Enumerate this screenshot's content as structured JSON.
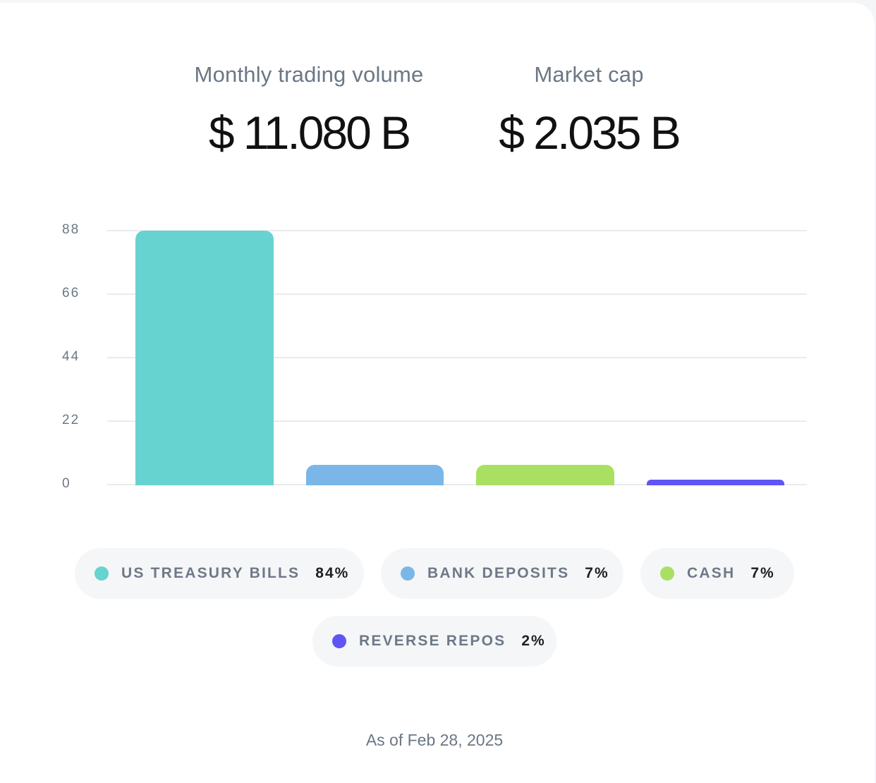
{
  "stats": {
    "monthly_volume": {
      "label": "Monthly trading volume",
      "value": "$ 11.080 B"
    },
    "market_cap": {
      "label": "Market cap",
      "value": "$ 2.035 B"
    }
  },
  "chart_data": {
    "type": "bar",
    "title": "",
    "xlabel": "",
    "ylabel": "",
    "categories": [
      "US TREASURY BILLS",
      "BANK DEPOSITS",
      "CASH",
      "REVERSE REPOS"
    ],
    "values": [
      84,
      7,
      7,
      2
    ],
    "colors": [
      "#66d3d1",
      "#7ab7e8",
      "#a9e062",
      "#5f55f5"
    ],
    "ylim": [
      0,
      88
    ],
    "yticks": [
      "88",
      "66",
      "44",
      "22",
      "0"
    ],
    "grid": true,
    "legend_position": "bottom"
  },
  "legend": [
    {
      "label": "US TREASURY BILLS",
      "pct": "84%",
      "color": "#66d3d1"
    },
    {
      "label": "BANK DEPOSITS",
      "pct": "7%",
      "color": "#7ab7e8"
    },
    {
      "label": "CASH",
      "pct": "7%",
      "color": "#a9e062"
    },
    {
      "label": "REVERSE REPOS",
      "pct": "2%",
      "color": "#5f55f5"
    }
  ],
  "footer": {
    "as_of": "As of Feb 28, 2025"
  }
}
